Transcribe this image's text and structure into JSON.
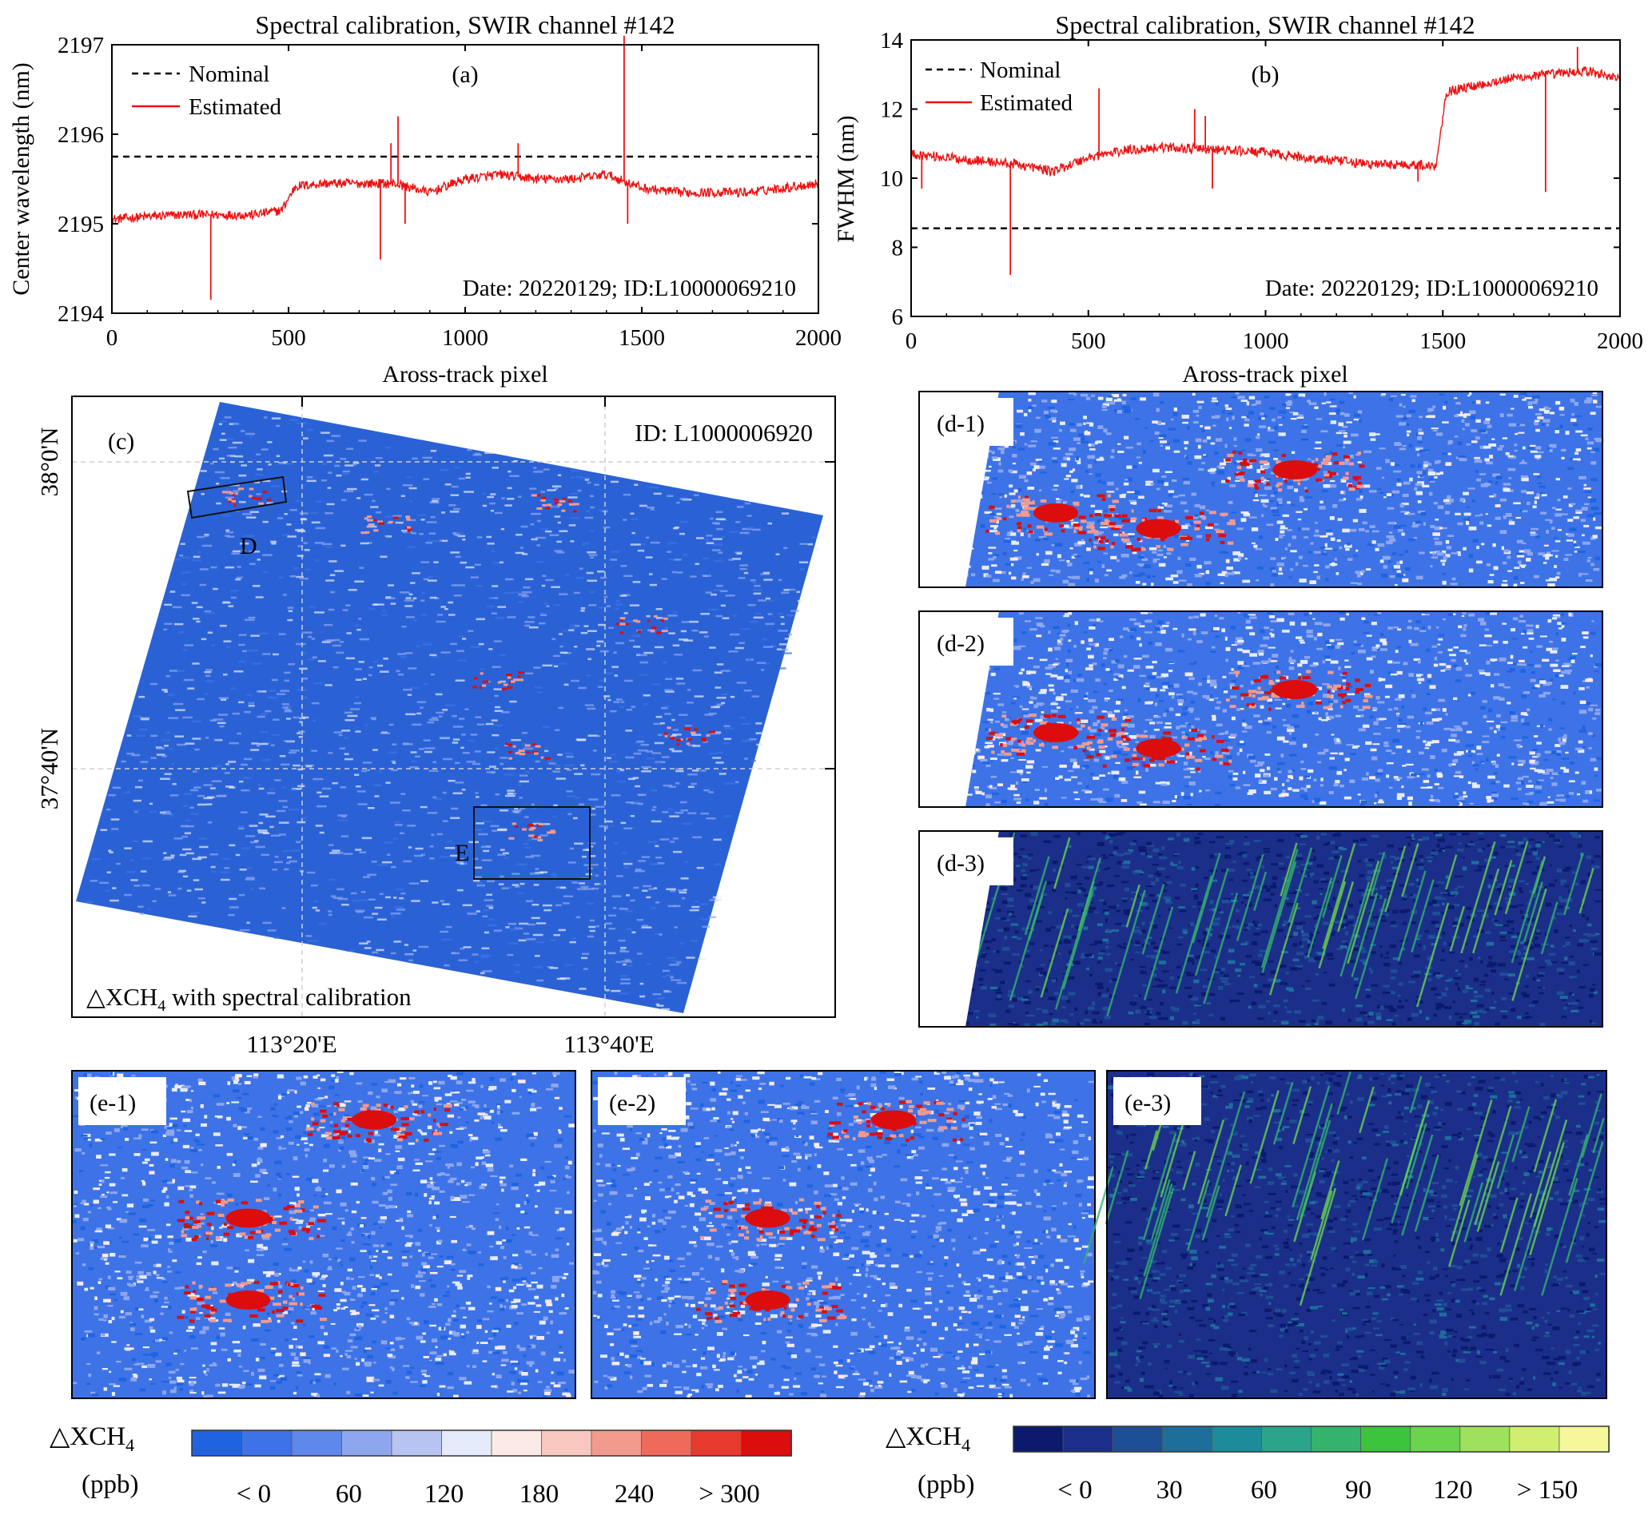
{
  "colors": {
    "estimated": "#ee1111",
    "nominal": "#000000",
    "ch4_ramp": [
      "#1f63e0",
      "#3d73e6",
      "#5e88ea",
      "#8ea6ee",
      "#b7c4f2",
      "#e6ebfb",
      "#fbeae6",
      "#f8c7c0",
      "#f39a8e",
      "#ee6b5c",
      "#e83a2e",
      "#dc0d0d"
    ],
    "ch4_diff_ramp": [
      "#0c1a6e",
      "#1b2f8a",
      "#1e4f96",
      "#1e6e9c",
      "#1d8c9a",
      "#2aa58a",
      "#33b36c",
      "#3cc43c",
      "#6ad44c",
      "#9fe05c",
      "#d0ef70",
      "#f6f69a"
    ]
  },
  "chart_data": [
    {
      "id": "a",
      "type": "line",
      "panel_label": "(a)",
      "title": "Spectral calibration, SWIR channel #142",
      "xlabel": "Aross-track pixel",
      "ylabel": "Center wavelength (nm)",
      "xlim": [
        0,
        2000
      ],
      "ylim": [
        2194,
        2197
      ],
      "xticks": [
        0,
        500,
        1000,
        1500,
        2000
      ],
      "yticks": [
        2194,
        2195,
        2196,
        2197
      ],
      "legend": [
        "Nominal",
        "Estimated"
      ],
      "legend_position": "top-left",
      "annotation": "Date: 20220129;  ID:L10000069210",
      "series": [
        {
          "name": "Nominal",
          "style": "dashed",
          "x": [
            0,
            2000
          ],
          "y": [
            2195.75,
            2195.75
          ]
        },
        {
          "name": "Estimated",
          "style": "solid",
          "x": [
            0,
            100,
            200,
            300,
            400,
            480,
            520,
            600,
            700,
            800,
            900,
            1000,
            1100,
            1200,
            1300,
            1400,
            1500,
            1600,
            1700,
            1800,
            1900,
            2000
          ],
          "y": [
            2195.05,
            2195.08,
            2195.1,
            2195.1,
            2195.1,
            2195.15,
            2195.42,
            2195.45,
            2195.45,
            2195.45,
            2195.35,
            2195.5,
            2195.55,
            2195.5,
            2195.5,
            2195.55,
            2195.4,
            2195.35,
            2195.35,
            2195.35,
            2195.4,
            2195.45
          ]
        },
        {
          "name": "spikes",
          "style": "spike",
          "x": [
            280,
            760,
            790,
            810,
            830,
            1150,
            1450,
            1460
          ],
          "y": [
            2194.15,
            2194.6,
            2195.9,
            2196.2,
            2195.0,
            2195.9,
            2197.1,
            2195.0
          ]
        }
      ]
    },
    {
      "id": "b",
      "type": "line",
      "panel_label": "(b)",
      "title": "Spectral calibration, SWIR channel #142",
      "xlabel": "Aross-track pixel",
      "ylabel": "FWHM (nm)",
      "xlim": [
        0,
        2000
      ],
      "ylim": [
        6,
        14
      ],
      "xticks": [
        0,
        500,
        1000,
        1500,
        2000
      ],
      "yticks": [
        6,
        8,
        10,
        12,
        14
      ],
      "legend": [
        "Nominal",
        "Estimated"
      ],
      "legend_position": "top-left",
      "annotation": "Date: 20220129;  ID:L10000069210",
      "series": [
        {
          "name": "Nominal",
          "style": "dashed",
          "x": [
            0,
            2000
          ],
          "y": [
            8.55,
            8.55
          ]
        },
        {
          "name": "Estimated",
          "style": "solid",
          "x": [
            0,
            100,
            200,
            300,
            400,
            500,
            600,
            700,
            800,
            900,
            1000,
            1100,
            1200,
            1300,
            1400,
            1480,
            1510,
            1600,
            1700,
            1800,
            1900,
            2000
          ],
          "y": [
            10.7,
            10.6,
            10.5,
            10.4,
            10.2,
            10.6,
            10.8,
            10.9,
            10.85,
            10.8,
            10.75,
            10.6,
            10.5,
            10.4,
            10.4,
            10.35,
            12.5,
            12.7,
            12.9,
            13.0,
            13.1,
            12.9
          ]
        },
        {
          "name": "spikes",
          "style": "spike",
          "x": [
            30,
            280,
            530,
            800,
            830,
            850,
            1430,
            1790,
            1880
          ],
          "y": [
            9.7,
            7.2,
            12.6,
            12.0,
            11.8,
            9.7,
            9.9,
            9.6,
            13.8
          ]
        }
      ]
    },
    {
      "id": "c",
      "type": "heatmap",
      "panel_label": "(c)",
      "image_id": "ID: L1000006920",
      "caption_prefix": "△XCH",
      "caption_sub": "4",
      "caption_suffix": " with spectral calibration",
      "x_ticks": [
        "113°20'E",
        "113°40'E"
      ],
      "y_ticks": [
        "38°0'N",
        "37°40'N"
      ],
      "box_labels": [
        "D",
        "E"
      ]
    },
    {
      "id": "d-1",
      "type": "heatmap",
      "panel_label": "(d-1)",
      "palette": "ch4"
    },
    {
      "id": "d-2",
      "type": "heatmap",
      "panel_label": "(d-2)",
      "palette": "ch4"
    },
    {
      "id": "d-3",
      "type": "heatmap",
      "panel_label": "(d-3)",
      "palette": "diff"
    },
    {
      "id": "e-1",
      "type": "heatmap",
      "panel_label": "(e-1)",
      "palette": "ch4"
    },
    {
      "id": "e-2",
      "type": "heatmap",
      "panel_label": "(e-2)",
      "palette": "ch4"
    },
    {
      "id": "e-3",
      "type": "heatmap",
      "panel_label": "(e-3)",
      "palette": "diff"
    }
  ],
  "colorbars": {
    "left": {
      "label": "△XCH",
      "label_sub": "4",
      "unit": "(ppb)",
      "ticks": [
        "< 0",
        "60",
        "120",
        "180",
        "240",
        "> 300"
      ]
    },
    "right": {
      "label": "△XCH",
      "label_sub": "4",
      "unit": "(ppb)",
      "ticks": [
        "< 0",
        "30",
        "60",
        "90",
        "120",
        "> 150"
      ]
    }
  }
}
